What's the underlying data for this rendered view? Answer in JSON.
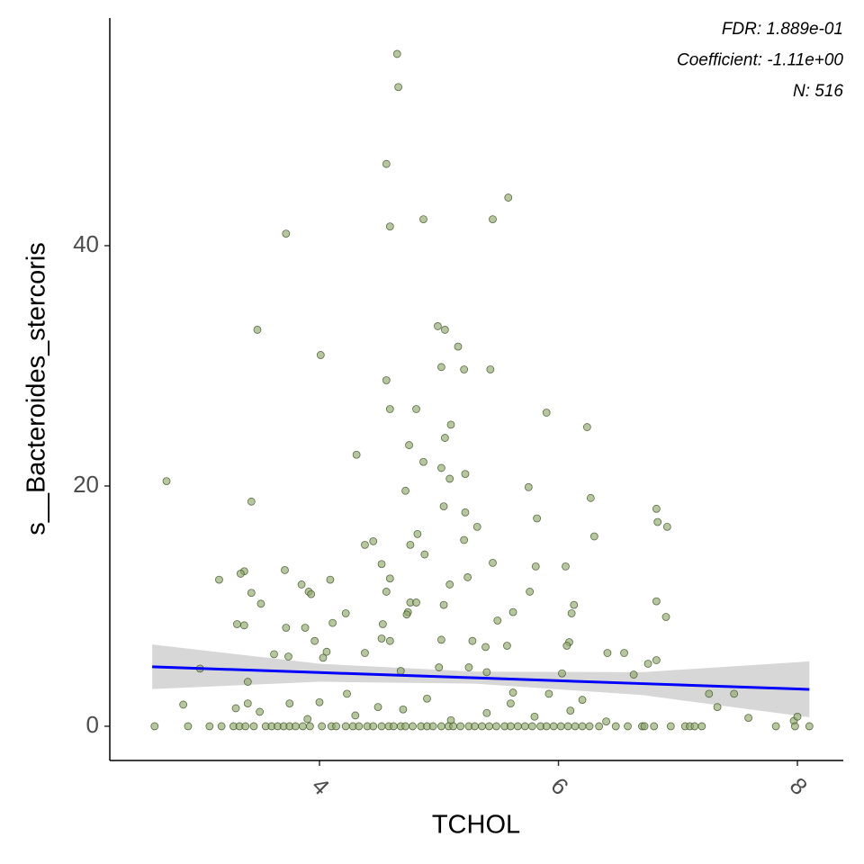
{
  "chart_data": {
    "type": "scatter",
    "x_label": "TCHOL",
    "y_label": "s__Bacteroides_stercoris",
    "annotations": [
      "FDR: 1.889e-01",
      "Coefficient: -1.11e+00",
      "N: 516"
    ],
    "point_color": "#8fa86b",
    "point_edge": "#3b4d22",
    "fit_color": "#0000ff",
    "band_color": "#d3d3d3",
    "xlim": [
      2.245,
      8.384
    ],
    "ylim": [
      -2.85,
      58.95
    ],
    "xticks": [
      4,
      6,
      8
    ],
    "yticks": [
      0,
      20,
      40
    ],
    "x": [
      4.65,
      4.66,
      4.56,
      4.59,
      4.87,
      5.58,
      5.45,
      3.72,
      3.48,
      4.01,
      4.99,
      5.05,
      5.16,
      4.56,
      5.02,
      5.21,
      5.43,
      4.59,
      4.81,
      5.9,
      6.24,
      5.1,
      5.05,
      4.75,
      4.31,
      4.87,
      5.02,
      5.22,
      5.09,
      2.72,
      5.75,
      4.72,
      3.43,
      6.27,
      5.04,
      6.82,
      5.22,
      5.82,
      6.83,
      6.91,
      5.32,
      4.82,
      5.21,
      6.3,
      4.45,
      4.38,
      4.76,
      4.88,
      5.45,
      4.52,
      5.81,
      6.06,
      3.71,
      3.37,
      3.34,
      3.16,
      4.09,
      5.24,
      4.59,
      3.85,
      5.09,
      3.43,
      5.76,
      3.91,
      3.93,
      4.56,
      5.04,
      4.76,
      4.81,
      6.13,
      6.82,
      3.51,
      4.74,
      6.11,
      5.62,
      4.22,
      4.73,
      6.9,
      4.11,
      5.49,
      3.31,
      3.37,
      3.72,
      3.88,
      4.53,
      4.52,
      4.59,
      3.96,
      5.02,
      5.28,
      6.09,
      6.82,
      4.38,
      3.62,
      3.74,
      4.03,
      4.06,
      5.39,
      5.57,
      6.07,
      6.55,
      6.41,
      3.0,
      3.4,
      4.68,
      5.0,
      5.25,
      5.4,
      6.03,
      6.63,
      6.75,
      7.26,
      7.47,
      2.86,
      3.4,
      4.23,
      4.49,
      5.62,
      5.92,
      7.33,
      7.59,
      7.97,
      8.0,
      3.5,
      3.9,
      4.3,
      4.7,
      5.1,
      5.4,
      5.8,
      6.1,
      6.4,
      4.0,
      4.9,
      5.6,
      6.2,
      3.3,
      3.75,
      2.62,
      2.9,
      3.08,
      3.18,
      3.28,
      3.33,
      3.38,
      3.45,
      3.55,
      3.6,
      3.65,
      3.7,
      3.75,
      3.8,
      3.86,
      3.92,
      4.02,
      4.1,
      4.14,
      4.22,
      4.28,
      4.33,
      4.4,
      4.45,
      4.52,
      4.58,
      4.62,
      4.68,
      4.72,
      4.78,
      4.85,
      4.9,
      4.95,
      5.02,
      5.08,
      5.12,
      5.18,
      5.25,
      5.3,
      5.36,
      5.42,
      5.48,
      5.55,
      5.6,
      5.66,
      5.72,
      5.78,
      5.85,
      5.9,
      5.96,
      6.02,
      6.08,
      6.14,
      6.2,
      6.26,
      6.34,
      6.48,
      6.58,
      6.7,
      6.72,
      6.8,
      6.94,
      7.06,
      7.1,
      7.14,
      7.2,
      7.82,
      7.98,
      8.1
    ],
    "values": [
      55.96,
      53.2,
      46.8,
      41.6,
      42.2,
      44.0,
      42.2,
      41.0,
      33.0,
      30.9,
      33.3,
      33.0,
      31.6,
      28.8,
      29.9,
      29.7,
      29.7,
      26.4,
      26.4,
      26.1,
      24.9,
      25.1,
      24.0,
      23.4,
      22.6,
      22.0,
      21.5,
      21.0,
      20.6,
      20.4,
      19.9,
      19.6,
      18.7,
      19.0,
      18.3,
      18.1,
      17.8,
      17.3,
      17.0,
      16.6,
      16.6,
      16.0,
      15.5,
      15.8,
      15.4,
      15.1,
      15.1,
      14.3,
      13.6,
      13.5,
      13.3,
      13.3,
      13.0,
      12.9,
      12.7,
      12.2,
      12.2,
      12.4,
      12.3,
      11.8,
      11.8,
      11.1,
      11.2,
      11.2,
      11.0,
      11.2,
      10.1,
      10.3,
      10.3,
      10.1,
      10.4,
      10.2,
      9.5,
      9.4,
      9.5,
      9.4,
      9.3,
      9.1,
      8.6,
      8.8,
      8.5,
      8.4,
      8.2,
      8.2,
      8.5,
      7.3,
      7.1,
      7.1,
      7.2,
      7.1,
      7.0,
      5.5,
      6.1,
      6.0,
      5.8,
      5.7,
      6.2,
      6.6,
      6.7,
      6.7,
      6.1,
      6.1,
      4.8,
      3.7,
      4.6,
      4.9,
      4.9,
      4.5,
      4.4,
      4.3,
      5.2,
      2.7,
      2.7,
      1.8,
      1.9,
      2.7,
      1.6,
      2.8,
      2.7,
      1.6,
      0.7,
      0.45,
      0.8,
      1.2,
      0.6,
      0.9,
      1.4,
      0.5,
      1.1,
      0.8,
      1.3,
      0.4,
      2.0,
      2.3,
      1.9,
      2.2,
      1.5,
      1.9,
      0,
      0,
      0,
      0,
      0,
      0,
      0,
      0,
      0,
      0,
      0,
      0,
      0,
      0,
      0,
      0,
      0,
      0,
      0,
      0,
      0,
      0,
      0,
      0,
      0,
      0,
      0,
      0,
      0,
      0,
      0,
      0,
      0,
      0,
      0,
      0,
      0,
      0,
      0,
      0,
      0,
      0,
      0,
      0,
      0,
      0,
      0,
      0,
      0,
      0,
      0,
      0,
      0,
      0,
      0,
      0,
      0,
      0,
      0,
      0,
      0,
      0,
      0,
      0,
      0,
      0,
      0,
      0,
      0
    ],
    "fit": {
      "x": [
        2.6,
        4.0,
        5.3,
        6.7,
        8.1
      ],
      "values": [
        4.95,
        4.47,
        4.03,
        3.55,
        3.07
      ],
      "lower": [
        3.1,
        3.7,
        3.55,
        2.6,
        0.75
      ],
      "upper": [
        6.8,
        5.2,
        4.55,
        4.5,
        5.4
      ]
    }
  }
}
